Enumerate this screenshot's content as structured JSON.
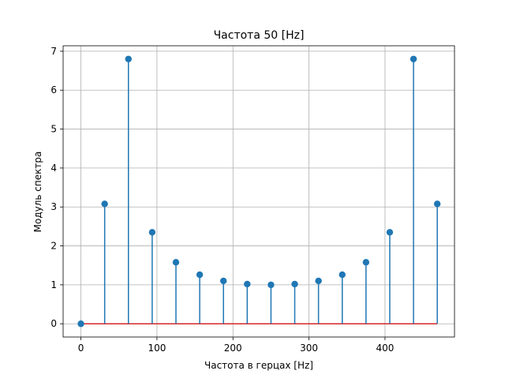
{
  "chart_data": {
    "type": "stem",
    "title": "Частота 50 [Hz]",
    "xlabel": "Частота в герцах [Hz]",
    "ylabel": "Модуль спектра",
    "xlim": [
      -23.4,
      491.4
    ],
    "ylim": [
      -0.34,
      7.14
    ],
    "xticks": [
      0,
      100,
      200,
      300,
      400
    ],
    "yticks": [
      0,
      1,
      2,
      3,
      4,
      5,
      6,
      7
    ],
    "grid": true,
    "x": [
      0,
      31.25,
      62.5,
      93.75,
      125,
      156.25,
      187.5,
      218.75,
      250,
      281.25,
      312.5,
      343.75,
      375,
      406.25,
      437.5,
      468.75
    ],
    "y": [
      0.0,
      3.08,
      6.8,
      2.35,
      1.58,
      1.26,
      1.1,
      1.02,
      1.0,
      1.02,
      1.1,
      1.26,
      1.58,
      2.35,
      6.8,
      3.08
    ],
    "baseline": 0,
    "colors": {
      "stem": "#1f77b4",
      "marker": "#1f77b4",
      "baseline": "#d62728",
      "grid": "#b0b0b0",
      "axes": "#000000"
    }
  }
}
